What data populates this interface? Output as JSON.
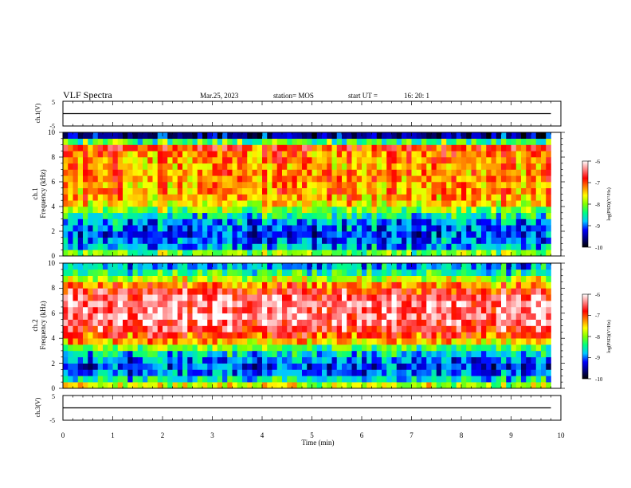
{
  "header": {
    "title": "VLF Spectra",
    "date": "Mar.25, 2023",
    "station": "station= MOS",
    "start_label": "start  UT  =",
    "start_time": "16: 20: 1"
  },
  "colorscale": {
    "label": "log(PSD)(V²/Hz)",
    "ticks": [
      "-6",
      "-7",
      "-8",
      "-9",
      "-10"
    ],
    "stops": [
      "#000000",
      "#000080",
      "#0000ff",
      "#00c8ff",
      "#00ff80",
      "#80ff00",
      "#ffff00",
      "#ff8000",
      "#ff0000",
      "#ff8080",
      "#ffffff"
    ]
  },
  "chart_data": [
    {
      "type": "line",
      "panel": "ch1-voltage",
      "ylabel": "ch.1(V)",
      "ylim": [
        -5,
        5
      ],
      "yticks": [
        "5",
        "-5"
      ],
      "x": [
        0,
        1,
        2,
        3,
        4,
        5,
        6,
        7,
        8,
        9,
        9.8
      ],
      "y": [
        0,
        0,
        0,
        0,
        0,
        0,
        0,
        0,
        0,
        0,
        0
      ]
    },
    {
      "type": "heatmap",
      "panel": "ch1-spectrogram",
      "ylabel": "ch.1",
      "ylabel2": "Frequency (kHz)",
      "ylim": [
        0,
        10
      ],
      "yticks": [
        "0",
        "2",
        "4",
        "6",
        "8",
        "10"
      ],
      "xlim": [
        0,
        10
      ],
      "data_end_min": 9.8,
      "frequency_khz": [
        0.25,
        0.75,
        1.25,
        1.75,
        2.25,
        2.75,
        3.25,
        3.75,
        4.25,
        4.75,
        5.25,
        5.75,
        6.25,
        6.75,
        7.25,
        7.75,
        8.25,
        8.75,
        9.25,
        9.75
      ],
      "mean_log_psd": [
        -8.0,
        -8.8,
        -9.0,
        -9.1,
        -9.0,
        -8.9,
        -8.5,
        -8.0,
        -7.5,
        -7.3,
        -7.2,
        -7.3,
        -7.2,
        -7.2,
        -7.3,
        -7.2,
        -7.1,
        -6.9,
        -8.2,
        -9.5
      ]
    },
    {
      "type": "heatmap",
      "panel": "ch2-spectrogram",
      "ylabel": "ch.2",
      "ylabel2": "Frequency (kHz)",
      "ylim": [
        0,
        10
      ],
      "yticks": [
        "0",
        "2",
        "4",
        "6",
        "8",
        "10"
      ],
      "xlim": [
        0,
        10
      ],
      "data_end_min": 9.8,
      "frequency_khz": [
        0.25,
        0.75,
        1.25,
        1.75,
        2.25,
        2.75,
        3.25,
        3.75,
        4.25,
        4.75,
        5.25,
        5.75,
        6.25,
        6.75,
        7.25,
        7.75,
        8.25,
        8.75,
        9.25,
        9.75
      ],
      "mean_log_psd": [
        -7.8,
        -8.6,
        -9.0,
        -9.2,
        -9.0,
        -8.7,
        -8.2,
        -7.5,
        -7.0,
        -6.7,
        -6.5,
        -6.4,
        -6.4,
        -6.4,
        -6.5,
        -6.8,
        -7.2,
        -7.8,
        -8.4,
        -8.8
      ]
    },
    {
      "type": "line",
      "panel": "ch3-voltage",
      "ylabel": "ch.3(V)",
      "ylim": [
        -5,
        5
      ],
      "yticks": [
        "5",
        "-5"
      ],
      "xlabel": "Time  (min)",
      "xlim": [
        0,
        10
      ],
      "xticks": [
        "0",
        "1",
        "2",
        "3",
        "4",
        "5",
        "6",
        "7",
        "8",
        "9",
        "10"
      ],
      "x": [
        0,
        1,
        2,
        3,
        4,
        5,
        6,
        7,
        8,
        9,
        9.8
      ],
      "y": [
        0,
        0,
        0,
        0,
        0,
        0,
        0,
        0,
        0,
        0,
        0
      ]
    }
  ]
}
